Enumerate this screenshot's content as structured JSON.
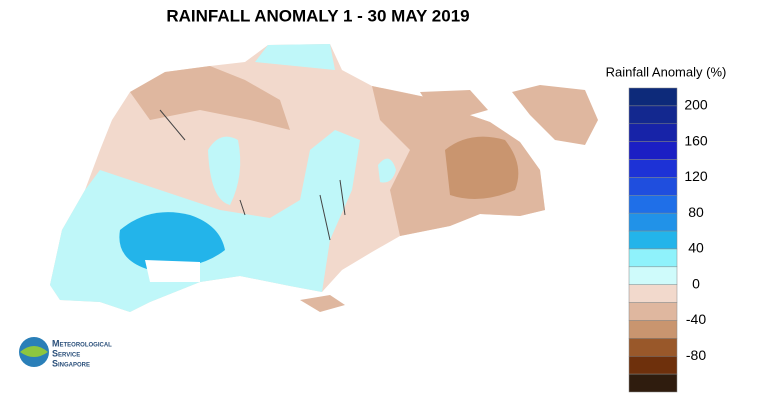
{
  "title": "RAINFALL ANOMALY 1 - 30 MAY 2019",
  "legend": {
    "title": "Rainfall Anomaly (%)",
    "labels": [
      200,
      160,
      120,
      80,
      40,
      0,
      -40,
      -80
    ],
    "colors": [
      "#0d2a7a",
      "#13288f",
      "#1723a8",
      "#1b1fc4",
      "#1d32d6",
      "#1f4ede",
      "#1f6fe8",
      "#2192e8",
      "#23b4ea",
      "#8ff2fb",
      "#cffbfb",
      "#f2d9cc",
      "#dfb79f",
      "#c9956f",
      "#99582a",
      "#6e300c",
      "#2f1c0e"
    ]
  },
  "logo": {
    "line1": "Meteorological",
    "line2": "Service",
    "line3": "Singapore"
  }
}
